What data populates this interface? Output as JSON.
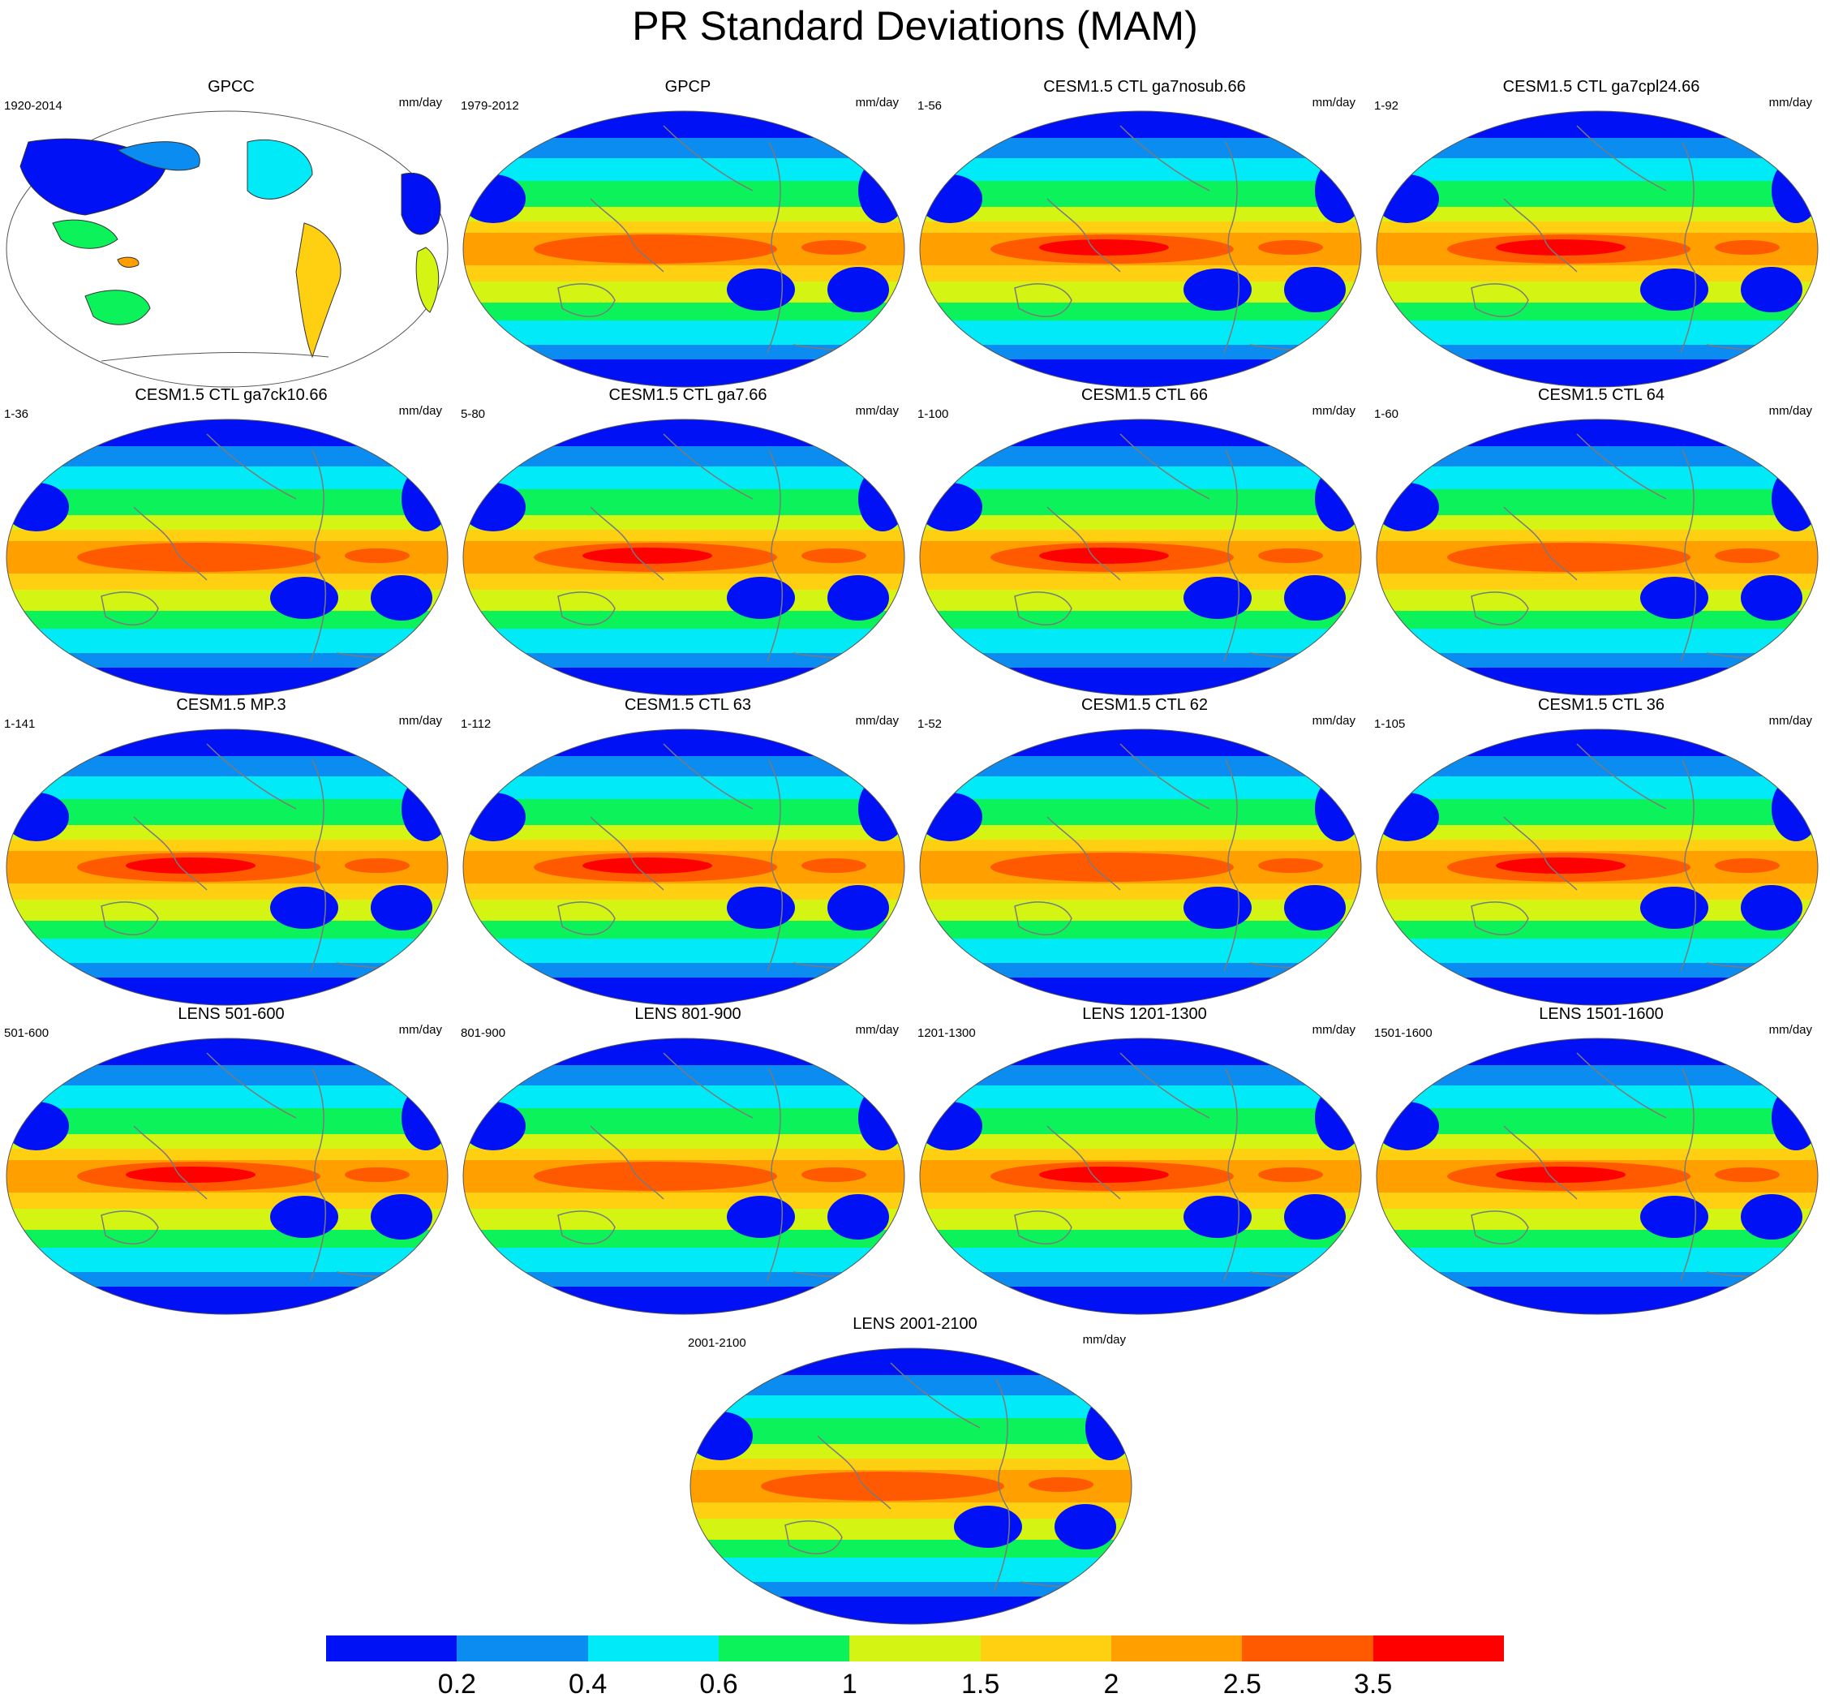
{
  "title": "PR Standard Deviations (MAM)",
  "panels": [
    {
      "title": "GPCC",
      "range": "1920-2014",
      "units": "mm/day",
      "land_only": true
    },
    {
      "title": "GPCP",
      "range": "1979-2012",
      "units": "mm/day"
    },
    {
      "title": "CESM1.5 CTL ga7nosub.66",
      "range": "1-56",
      "units": "mm/day"
    },
    {
      "title": "CESM1.5 CTL ga7cpl24.66",
      "range": "1-92",
      "units": "mm/day"
    },
    {
      "title": "CESM1.5 CTL ga7ck10.66",
      "range": "1-36",
      "units": "mm/day"
    },
    {
      "title": "CESM1.5 CTL ga7.66",
      "range": "5-80",
      "units": "mm/day"
    },
    {
      "title": "CESM1.5 CTL 66",
      "range": "1-100",
      "units": "mm/day"
    },
    {
      "title": "CESM1.5 CTL 64",
      "range": "1-60",
      "units": "mm/day"
    },
    {
      "title": "CESM1.5 MP.3",
      "range": "1-141",
      "units": "mm/day"
    },
    {
      "title": "CESM1.5 CTL 63",
      "range": "1-112",
      "units": "mm/day"
    },
    {
      "title": "CESM1.5 CTL 62",
      "range": "1-52",
      "units": "mm/day"
    },
    {
      "title": "CESM1.5 CTL 36",
      "range": "1-105",
      "units": "mm/day"
    },
    {
      "title": "LENS 501-600",
      "range": "501-600",
      "units": "mm/day"
    },
    {
      "title": "LENS 801-900",
      "range": "801-900",
      "units": "mm/day"
    },
    {
      "title": "LENS 1201-1300",
      "range": "1201-1300",
      "units": "mm/day"
    },
    {
      "title": "LENS 1501-1600",
      "range": "1501-1600",
      "units": "mm/day"
    },
    {
      "title": "LENS 2001-2100",
      "range": "2001-2100",
      "units": "mm/day"
    }
  ],
  "colorbar": {
    "colors": [
      "#0012f5",
      "#0a8cf0",
      "#00eaf8",
      "#0cf25a",
      "#d4f513",
      "#ffd012",
      "#ffa000",
      "#ff5a00",
      "#ff0000"
    ],
    "labels": [
      "0.2",
      "0.4",
      "0.6",
      "1",
      "1.5",
      "2",
      "2.5",
      "3.5"
    ]
  }
}
